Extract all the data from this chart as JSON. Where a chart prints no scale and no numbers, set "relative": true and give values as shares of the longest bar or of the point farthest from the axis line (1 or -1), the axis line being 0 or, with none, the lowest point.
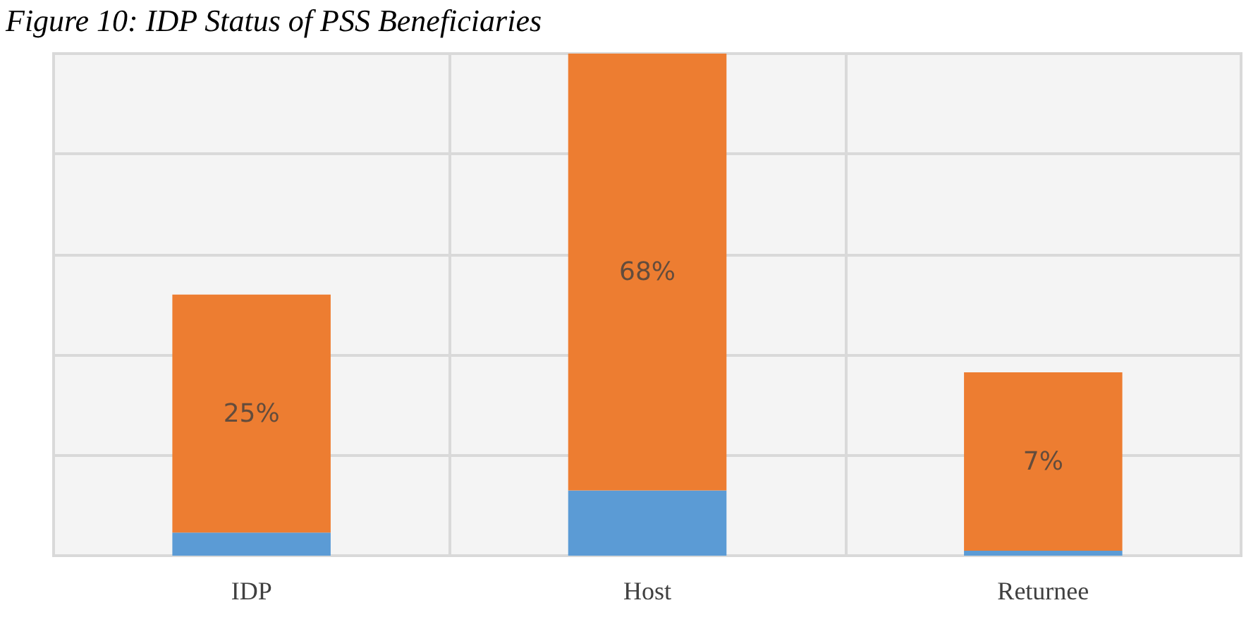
{
  "chart_data": {
    "type": "bar",
    "title": "Figure 10: IDP Status of PSS Beneficiaries",
    "categories": [
      "IDP",
      "Host",
      "Returnee"
    ],
    "stacked": true,
    "relative": true,
    "grid": true,
    "series": [
      {
        "color": "#5b9bd5",
        "values": [
          0.046,
          0.13,
          0.01
        ]
      },
      {
        "color": "#ed7d31",
        "values": [
          0.474,
          0.87,
          0.355
        ]
      }
    ],
    "annotations": [
      "25%",
      "68%",
      "7%"
    ]
  }
}
